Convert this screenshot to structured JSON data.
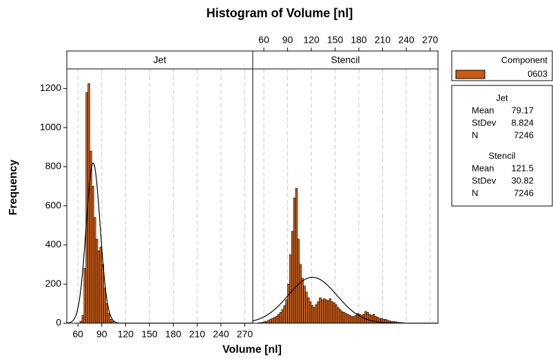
{
  "chart_data": {
    "type": "histogram",
    "title": "Histogram of Volume [nl]",
    "x_label": "Volume [nl]",
    "y_label": "Frequency",
    "xlim": [
      46,
      280
    ],
    "xticks": [
      60,
      90,
      120,
      150,
      180,
      210,
      240,
      270
    ],
    "ylim": [
      0,
      1300
    ],
    "yticks": [
      0,
      200,
      400,
      600,
      800,
      1000,
      1200
    ],
    "grid": true,
    "color": "#cc5a12",
    "edgecolor": "#000000",
    "legend_title": "Component",
    "series_name": "0603",
    "stat_labels": [
      "Mean",
      "StDev",
      "N"
    ],
    "panels": [
      {
        "name": "Jet",
        "mean": 79.17,
        "stdev": 8.824,
        "n": 7246,
        "bins": [
          62.5,
          65,
          67.5,
          70,
          72.5,
          75,
          77.5,
          80,
          82.5,
          85,
          87.5,
          90,
          92.5,
          95,
          97.5,
          100,
          102.5,
          105
        ],
        "counts": [
          10,
          40,
          280,
          1180,
          1225,
          880,
          700,
          540,
          430,
          370,
          390,
          300,
          180,
          100,
          50,
          20,
          10
        ]
      },
      {
        "name": "Stencil",
        "mean": 121.5,
        "stdev": 30.82,
        "n": 7246,
        "bins": [
          52.5,
          55,
          57.5,
          60,
          62.5,
          65,
          67.5,
          70,
          72.5,
          75,
          77.5,
          80,
          82.5,
          85,
          87.5,
          90,
          92.5,
          95,
          97.5,
          100,
          102.5,
          105,
          107.5,
          110,
          112.5,
          115,
          117.5,
          120,
          122.5,
          125,
          127.5,
          130,
          132.5,
          135,
          137.5,
          140,
          142.5,
          145,
          147.5,
          150,
          152.5,
          155,
          157.5,
          160,
          162.5,
          165,
          167.5,
          170,
          172.5,
          175,
          177.5,
          180,
          182.5,
          185,
          187.5,
          190,
          192.5,
          195,
          197.5,
          200,
          202.5,
          205,
          207.5,
          210,
          212.5,
          215,
          217.5,
          220,
          222.5,
          225,
          227.5,
          230,
          232.5,
          235,
          237.5,
          240
        ],
        "counts": [
          2,
          3,
          5,
          8,
          10,
          15,
          20,
          25,
          30,
          35,
          45,
          55,
          70,
          90,
          120,
          200,
          350,
          470,
          640,
          690,
          430,
          300,
          230,
          190,
          160,
          130,
          110,
          90,
          80,
          95,
          110,
          130,
          120,
          125,
          120,
          115,
          125,
          110,
          105,
          95,
          80,
          70,
          60,
          55,
          50,
          45,
          40,
          35,
          35,
          40,
          50,
          45,
          40,
          45,
          60,
          55,
          45,
          40,
          45,
          35,
          30,
          25,
          25,
          20,
          20,
          15,
          12,
          10,
          8,
          8,
          5,
          4,
          3,
          2,
          1
        ]
      }
    ]
  }
}
